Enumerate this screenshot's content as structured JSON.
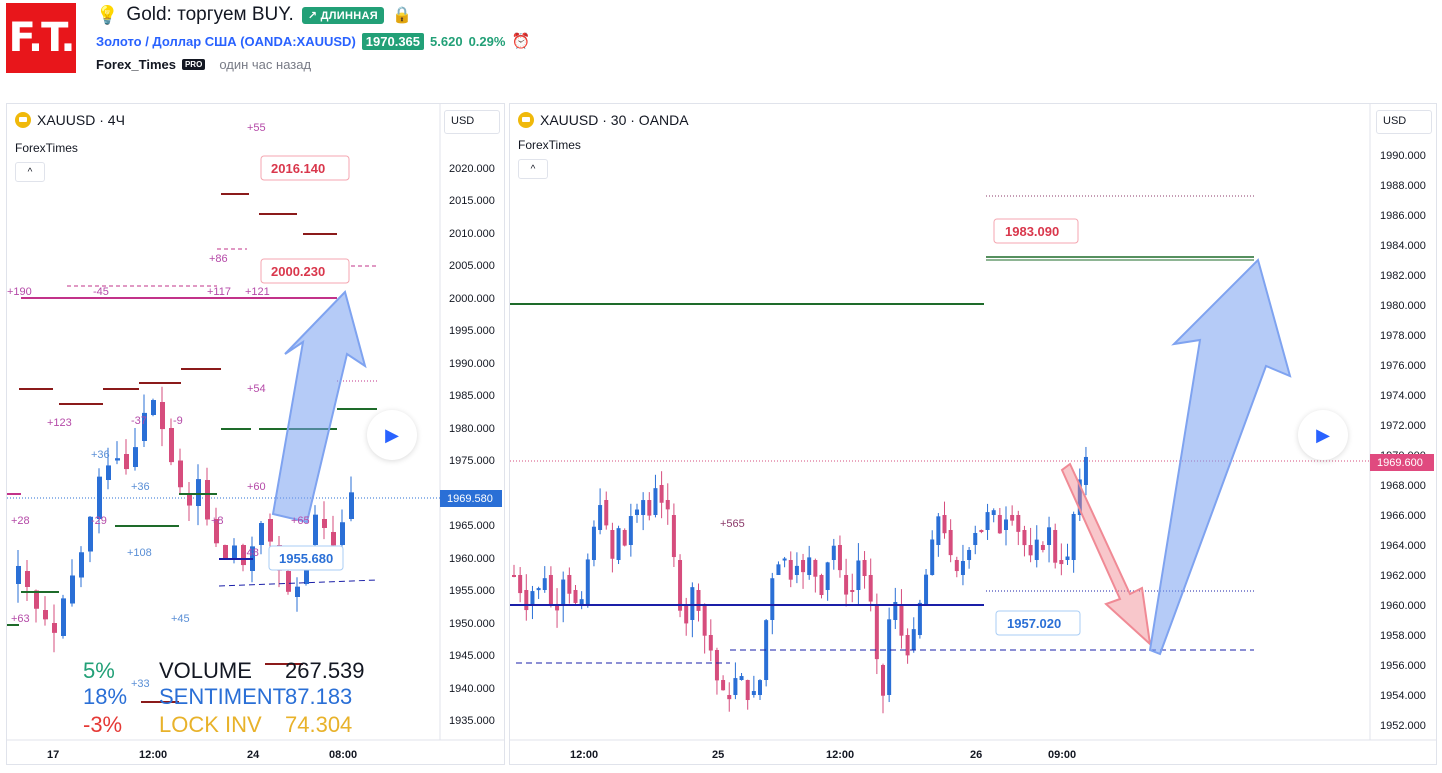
{
  "header": {
    "logo_text": "F.T.",
    "bulb_icon": "💡",
    "title": "Gold: торгуем BUY.",
    "badge": "↗ ДЛИННАЯ",
    "symbol_link": "Золото / Доллар США (OANDA:XAUUSD)",
    "price": "1970.365",
    "change": "5.620",
    "change_pct": "0.29%",
    "author": "Forex_Times",
    "author_badge": "PRO",
    "time_ago": "один час назад"
  },
  "left": {
    "title": "XAUUSD · 4Ч",
    "indicator": "ForexTimes",
    "collapse": "^",
    "currency": "USD",
    "price_ticks": [
      "2020.000",
      "2015.000",
      "2010.000",
      "2005.000",
      "2000.000",
      "1995.000",
      "1990.000",
      "1985.000",
      "1980.000",
      "1975.000",
      "1965.000",
      "1960.000",
      "1955.000",
      "1950.000",
      "1945.000",
      "1940.000",
      "1935.000"
    ],
    "last_price": "1969.580",
    "time_ticks": [
      "17",
      "12:00",
      "24",
      "08:00"
    ],
    "targets": [
      "2016.140",
      "2000.230",
      "1955.680"
    ],
    "marks": [
      "+55",
      "+86",
      "+117",
      "+121",
      "+190",
      "-45",
      "+54",
      "+123",
      "-37",
      "-9",
      "+36",
      "+36",
      "+60",
      "+28",
      "-29",
      "+8",
      "+65",
      "+108",
      "+63",
      "+45",
      "+33",
      "-48"
    ],
    "stats": [
      {
        "pct": "5%",
        "label": "VOLUME",
        "value": "267.539",
        "color": "#22a077",
        "label_color": "#131722"
      },
      {
        "pct": "18%",
        "label": "SENTIMENT",
        "value": "87.183",
        "color": "#2a6fd6",
        "label_color": "#2a6fd6"
      },
      {
        "pct": "-3%",
        "label": "LOCK INV",
        "value": "74.304",
        "color": "#e53935",
        "label_color": "#e8b22a"
      }
    ]
  },
  "right": {
    "title": "XAUUSD · 30 · OANDA",
    "indicator": "ForexTimes",
    "collapse": "^",
    "currency": "USD",
    "price_ticks": [
      "1990.000",
      "1988.000",
      "1986.000",
      "1984.000",
      "1982.000",
      "1980.000",
      "1978.000",
      "1976.000",
      "1974.000",
      "1972.000",
      "1970.000",
      "1968.000",
      "1966.000",
      "1964.000",
      "1962.000",
      "1960.000",
      "1958.000",
      "1956.000",
      "1954.000",
      "1952.000"
    ],
    "last_price": "1969.600",
    "time_ticks": [
      "12:00",
      "25",
      "12:00",
      "26",
      "09:00"
    ],
    "targets": [
      "1983.090",
      "1957.020"
    ],
    "mark": "+565"
  },
  "colors": {
    "up": "#2a6fd6",
    "down": "#d64d7d",
    "green_line": "#1e6b2a",
    "red_line": "#8b1a1a",
    "blue_line": "#1a1fa8",
    "magenta": "#c2338a"
  }
}
